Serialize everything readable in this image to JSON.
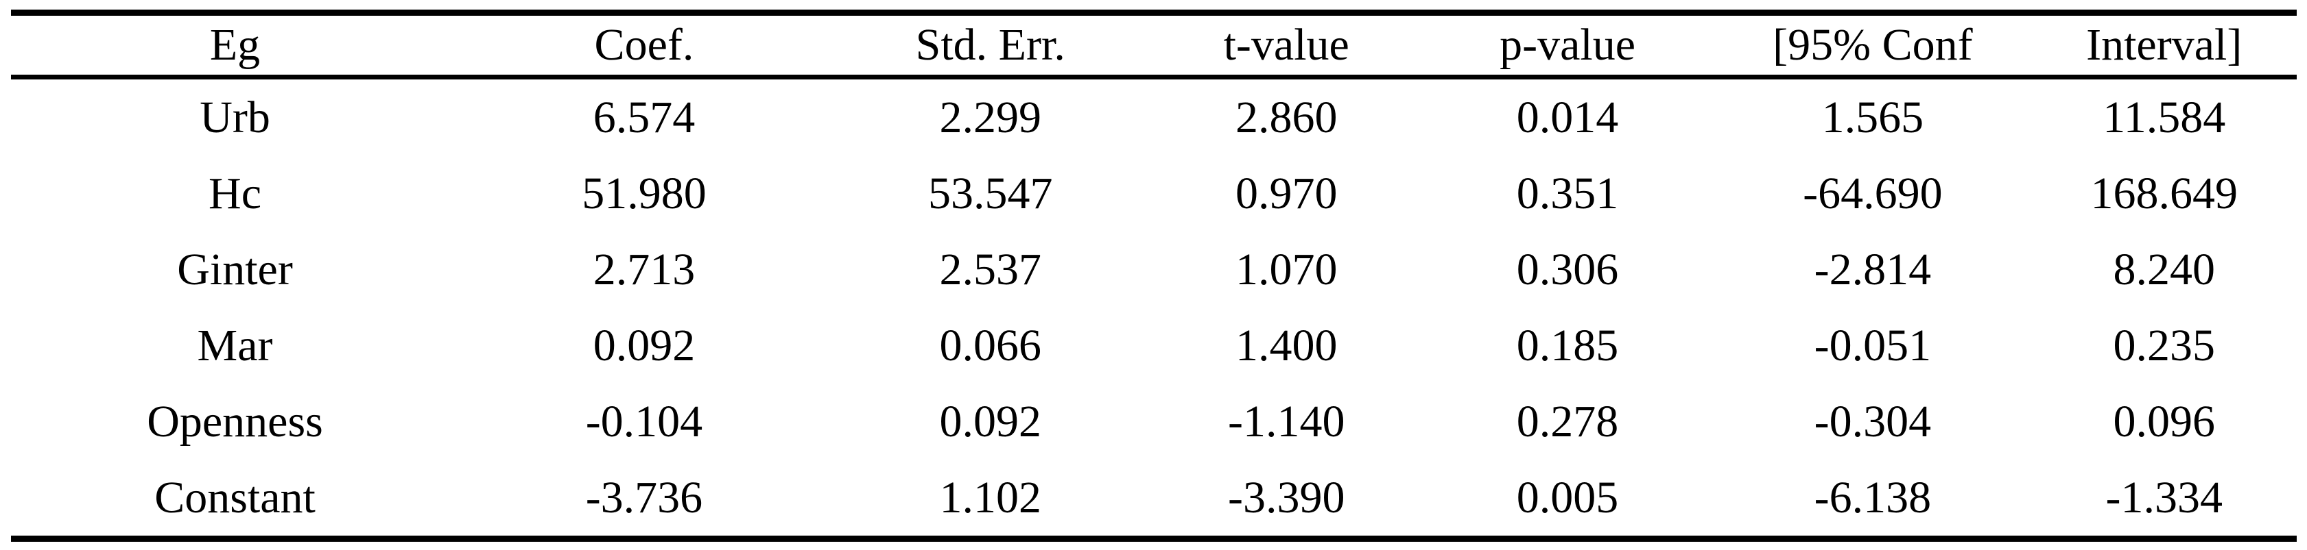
{
  "table": {
    "columns": [
      "Eg",
      "Coef.",
      "Std. Err.",
      "t-value",
      "p-value",
      "[95% Conf",
      "Interval]"
    ],
    "rows": [
      [
        "Urb",
        "6.574",
        "2.299",
        "2.860",
        "0.014",
        "1.565",
        "11.584"
      ],
      [
        "Hc",
        "51.980",
        "53.547",
        "0.970",
        "0.351",
        "-64.690",
        "168.649"
      ],
      [
        "Ginter",
        "2.713",
        "2.537",
        "1.070",
        "0.306",
        "-2.814",
        "8.240"
      ],
      [
        "Mar",
        "0.092",
        "0.066",
        "1.400",
        "0.185",
        "-0.051",
        "0.235"
      ],
      [
        "Openness",
        "-0.104",
        "0.092",
        "-1.140",
        "0.278",
        "-0.304",
        "0.096"
      ],
      [
        "Constant",
        "-3.736",
        "1.102",
        "-3.390",
        "0.005",
        "-6.138",
        "-1.334"
      ]
    ],
    "colors": {
      "text": "#000000",
      "background": "#ffffff",
      "rule": "#000000"
    }
  },
  "chart_data": {
    "type": "table",
    "title": "",
    "columns": [
      "Eg",
      "Coef.",
      "Std. Err.",
      "t-value",
      "p-value",
      "[95% Conf",
      "Interval]"
    ],
    "rows": [
      [
        "Urb",
        "6.574",
        "2.299",
        "2.860",
        "0.014",
        "1.565",
        "11.584"
      ],
      [
        "Hc",
        "51.980",
        "53.547",
        "0.970",
        "0.351",
        "-64.690",
        "168.649"
      ],
      [
        "Ginter",
        "2.713",
        "2.537",
        "1.070",
        "0.306",
        "-2.814",
        "8.240"
      ],
      [
        "Mar",
        "0.092",
        "0.066",
        "1.400",
        "0.185",
        "-0.051",
        "0.235"
      ],
      [
        "Openness",
        "-0.104",
        "0.092",
        "-1.140",
        "0.278",
        "-0.304",
        "0.096"
      ],
      [
        "Constant",
        "-3.736",
        "1.102",
        "-3.390",
        "0.005",
        "-6.138",
        "-1.334"
      ]
    ]
  }
}
